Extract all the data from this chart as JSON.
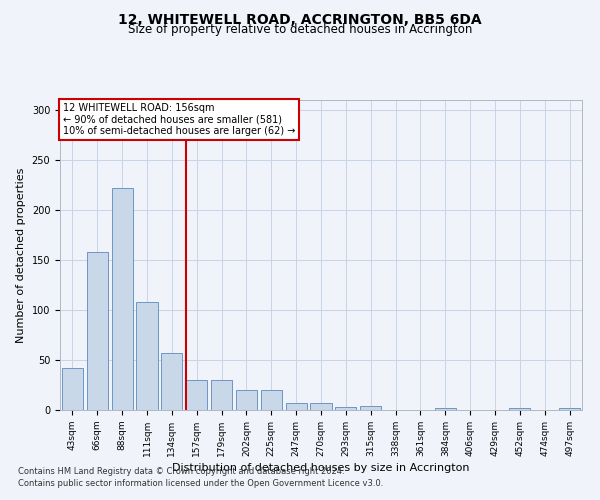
{
  "title": "12, WHITEWELL ROAD, ACCRINGTON, BB5 6DA",
  "subtitle": "Size of property relative to detached houses in Accrington",
  "xlabel": "Distribution of detached houses by size in Accrington",
  "ylabel": "Number of detached properties",
  "categories": [
    "43sqm",
    "66sqm",
    "88sqm",
    "111sqm",
    "134sqm",
    "157sqm",
    "179sqm",
    "202sqm",
    "225sqm",
    "247sqm",
    "270sqm",
    "293sqm",
    "315sqm",
    "338sqm",
    "361sqm",
    "384sqm",
    "406sqm",
    "429sqm",
    "452sqm",
    "474sqm",
    "497sqm"
  ],
  "values": [
    42,
    158,
    222,
    108,
    57,
    30,
    30,
    20,
    20,
    7,
    7,
    3,
    4,
    0,
    0,
    2,
    0,
    0,
    2,
    0,
    2
  ],
  "bar_color": "#c8d8e8",
  "bar_edge_color": "#5a8abf",
  "annotation_text_line1": "12 WHITEWELL ROAD: 156sqm",
  "annotation_text_line2": "← 90% of detached houses are smaller (581)",
  "annotation_text_line3": "10% of semi-detached houses are larger (62) →",
  "annotation_box_color": "#ffffff",
  "annotation_box_edge_color": "#cc0000",
  "red_line_color": "#cc0000",
  "ylim": [
    0,
    310
  ],
  "yticks": [
    0,
    50,
    100,
    150,
    200,
    250,
    300
  ],
  "footnote1": "Contains HM Land Registry data © Crown copyright and database right 2024.",
  "footnote2": "Contains public sector information licensed under the Open Government Licence v3.0.",
  "bg_color": "#f0f4fa",
  "grid_color": "#c8d4e8",
  "title_fontsize": 10,
  "subtitle_fontsize": 8.5,
  "ylabel_fontsize": 8,
  "xlabel_fontsize": 8,
  "tick_fontsize": 6.5,
  "footnote_fontsize": 6
}
